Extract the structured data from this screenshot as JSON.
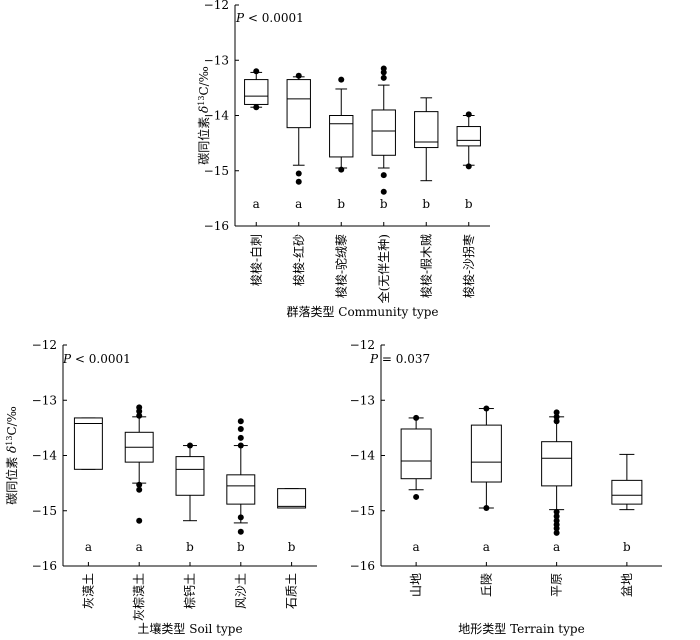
{
  "chart_data": [
    {
      "type": "box",
      "id": "community",
      "title": "",
      "ylabel_main": "碳同位素 ",
      "ylabel_delta": "δ",
      "ylabel_sup": "13",
      "ylabel_unit": "C/‰",
      "xlabel": "群落类型 Community type",
      "p_italic": "P",
      "p_text": " < 0.0001",
      "ylim": [
        -16,
        -12
      ],
      "yticks": [
        "-12",
        "-13",
        "-14",
        "-15",
        "-16"
      ],
      "ytick_values": [
        -12,
        -13,
        -14,
        -15,
        -16
      ],
      "categories": [
        "梭梭-白刺",
        "梭梭-红砂",
        "梭梭-驼绒藜",
        "全(无伴生种)",
        "梭梭-假木贼",
        "梭梭-沙拐枣"
      ],
      "letters": [
        "a",
        "a",
        "b",
        "b",
        "b",
        "b"
      ],
      "boxes": [
        {
          "whisker_low": -13.85,
          "q1": -13.8,
          "median": -13.65,
          "q3": -13.35,
          "whisker_high": -13.22,
          "outliers": [
            -13.2,
            -13.85
          ]
        },
        {
          "whisker_low": -14.9,
          "q1": -14.22,
          "median": -13.7,
          "q3": -13.35,
          "whisker_high": -13.3,
          "outliers": [
            -13.28,
            -15.05,
            -15.2
          ]
        },
        {
          "whisker_low": -14.95,
          "q1": -14.75,
          "median": -14.15,
          "q3": -14.0,
          "whisker_high": -13.52,
          "outliers": [
            -13.35,
            -14.98
          ]
        },
        {
          "whisker_low": -14.95,
          "q1": -14.72,
          "median": -14.28,
          "q3": -13.9,
          "whisker_high": -13.45,
          "outliers": [
            -13.15,
            -13.22,
            -13.32,
            -15.08,
            -15.38
          ]
        },
        {
          "whisker_low": -15.18,
          "q1": -14.58,
          "median": -14.48,
          "q3": -13.93,
          "whisker_high": -13.68,
          "outliers": []
        },
        {
          "whisker_low": -14.9,
          "q1": -14.55,
          "median": -14.45,
          "q3": -14.2,
          "whisker_high": -14.0,
          "outliers": [
            -13.98,
            -14.92
          ]
        }
      ]
    },
    {
      "type": "box",
      "id": "soil",
      "title": "",
      "ylabel_main": "碳同位素 ",
      "ylabel_delta": "δ",
      "ylabel_sup": "13",
      "ylabel_unit": "C/‰",
      "xlabel": "土壤类型  Soil type",
      "p_italic": "P",
      "p_text": " < 0.0001",
      "ylim": [
        -16,
        -12
      ],
      "yticks": [
        "-12",
        "-13",
        "-14",
        "-15",
        "-16"
      ],
      "ytick_values": [
        -12,
        -13,
        -14,
        -15,
        -16
      ],
      "categories": [
        "灰漠土",
        "灰棕漠土",
        "棕钙土",
        "风沙土",
        "石质土"
      ],
      "letters": [
        "a",
        "a",
        "b",
        "b",
        "b"
      ],
      "boxes": [
        {
          "whisker_low": -14.25,
          "q1": -14.25,
          "median": -13.42,
          "q3": -13.32,
          "whisker_high": -13.32,
          "outliers": []
        },
        {
          "whisker_low": -14.5,
          "q1": -14.12,
          "median": -13.85,
          "q3": -13.58,
          "whisker_high": -13.3,
          "outliers": [
            -13.13,
            -13.2,
            -13.28,
            -14.53,
            -14.62,
            -15.18
          ]
        },
        {
          "whisker_low": -15.18,
          "q1": -14.72,
          "median": -14.25,
          "q3": -14.02,
          "whisker_high": -13.82,
          "outliers": [
            -13.82
          ]
        },
        {
          "whisker_low": -15.22,
          "q1": -14.88,
          "median": -14.55,
          "q3": -14.35,
          "whisker_high": -13.82,
          "outliers": [
            -13.38,
            -13.52,
            -13.68,
            -13.82,
            -15.12,
            -15.38
          ]
        },
        {
          "whisker_low": -14.95,
          "q1": -14.95,
          "median": -14.92,
          "q3": -14.6,
          "whisker_high": -14.6,
          "outliers": []
        }
      ]
    },
    {
      "type": "box",
      "id": "terrain",
      "title": "",
      "ylabel_main": "",
      "ylabel_delta": "",
      "ylabel_sup": "",
      "ylabel_unit": "",
      "xlabel": "地形类型  Terrain type",
      "p_italic": "P",
      "p_text": " = 0.037",
      "ylim": [
        -16,
        -12
      ],
      "yticks": [
        "-12",
        "-13",
        "-14",
        "-15",
        "-16"
      ],
      "ytick_values": [
        -12,
        -13,
        -14,
        -15,
        -16
      ],
      "categories": [
        "山地",
        "丘陵",
        "平原",
        "盆地"
      ],
      "letters": [
        "a",
        "a",
        "a",
        "b"
      ],
      "boxes": [
        {
          "whisker_low": -14.62,
          "q1": -14.42,
          "median": -14.1,
          "q3": -13.52,
          "whisker_high": -13.32,
          "outliers": [
            -13.32,
            -14.75
          ]
        },
        {
          "whisker_low": -14.95,
          "q1": -14.48,
          "median": -14.12,
          "q3": -13.45,
          "whisker_high": -13.15,
          "outliers": [
            -13.15,
            -14.95
          ]
        },
        {
          "whisker_low": -14.98,
          "q1": -14.55,
          "median": -14.05,
          "q3": -13.75,
          "whisker_high": -13.3,
          "outliers": [
            -13.22,
            -13.3,
            -13.38,
            -15.02,
            -15.1,
            -15.18,
            -15.25,
            -15.32,
            -15.4
          ]
        },
        {
          "whisker_low": -14.98,
          "q1": -14.88,
          "median": -14.72,
          "q3": -14.45,
          "whisker_high": -13.98,
          "outliers": []
        }
      ]
    }
  ]
}
